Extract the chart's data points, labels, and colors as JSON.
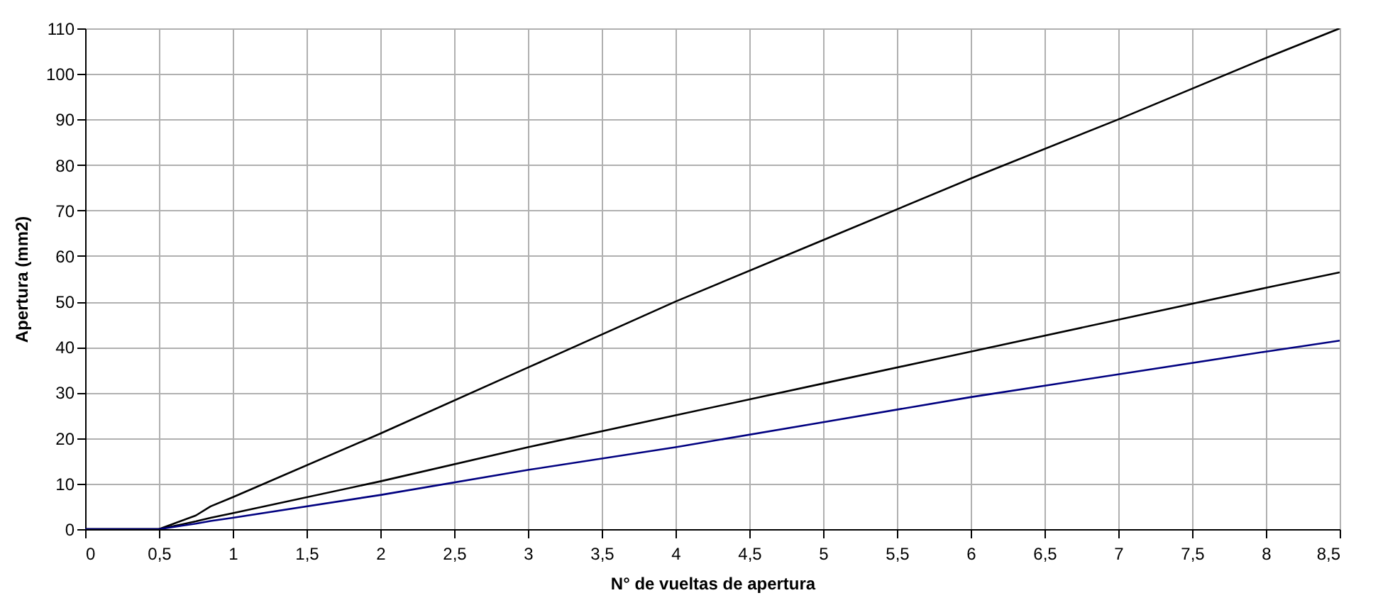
{
  "chart_data": {
    "type": "line",
    "xlabel": "N° de vueltas de apertura",
    "ylabel": "Apertura (mm2)",
    "xlim": [
      0,
      8.5
    ],
    "xticks": [
      0,
      {
        "value": 0.5,
        "label": "0,5"
      },
      1,
      {
        "value": 1.5,
        "label": "1,5"
      },
      2,
      {
        "value": 2.5,
        "label": "2,5"
      },
      3,
      {
        "value": 3.5,
        "label": "3,5"
      },
      4,
      {
        "value": 4.5,
        "label": "4,5"
      },
      5,
      {
        "value": 5.5,
        "label": "5,5"
      },
      6,
      {
        "value": 6.5,
        "label": "6,5"
      },
      7,
      {
        "value": 7.5,
        "label": "7,5"
      },
      8,
      {
        "value": 8.5,
        "label": "8,5"
      }
    ],
    "ylim": [
      0,
      110
    ],
    "yticks": [
      0,
      10,
      20,
      30,
      40,
      50,
      60,
      70,
      80,
      90,
      100,
      110
    ],
    "grid": true,
    "marker": "none",
    "line_style": "solid",
    "x": [
      0,
      0.5,
      0.75,
      0.85,
      1,
      2,
      3,
      4,
      5,
      6,
      7,
      8,
      8.5
    ],
    "series": [
      {
        "color": "#000000",
        "values": [
          0,
          0,
          3,
          5,
          7,
          21,
          35.5,
          50,
          63.5,
          77,
          90,
          103.5,
          110
        ]
      },
      {
        "color": "#000000",
        "values": [
          0,
          0,
          1.7,
          2.5,
          3.5,
          10.5,
          18,
          25,
          32,
          39,
          46,
          53,
          56.4
        ]
      },
      {
        "color": "#000080",
        "values": [
          0,
          0,
          1.2,
          1.8,
          2.5,
          7.5,
          13,
          18,
          23.5,
          29,
          34,
          39,
          41.4
        ]
      }
    ]
  }
}
